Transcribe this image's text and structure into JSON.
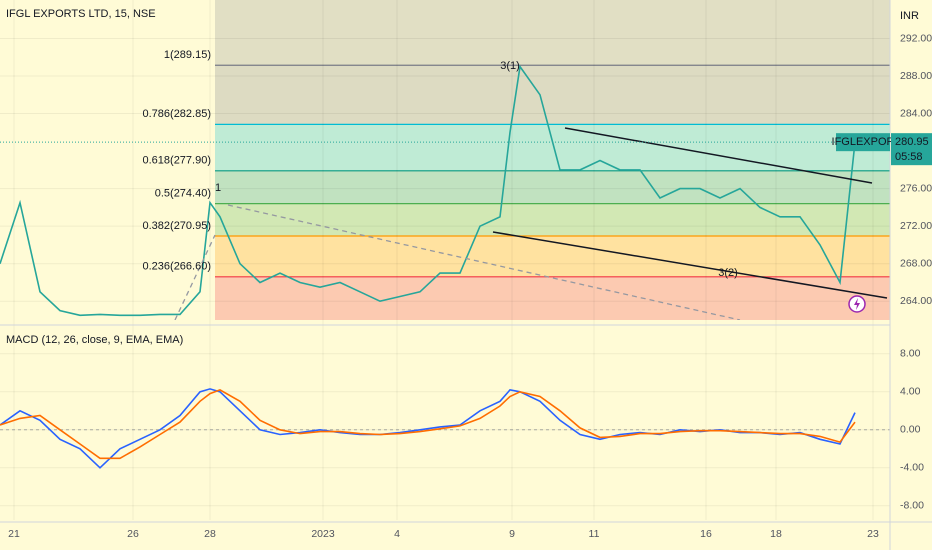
{
  "chart_data": [
    {
      "type": "line",
      "title": "IFGL EXPORTS LTD, 15, NSE",
      "y_label": "INR",
      "x": [
        0,
        2,
        4,
        6,
        8,
        10,
        12,
        14,
        16,
        18,
        20,
        21,
        22,
        24,
        26,
        28,
        30,
        32,
        34,
        36,
        38,
        40,
        42,
        44,
        46,
        48,
        50,
        51,
        52,
        54,
        56,
        58,
        60,
        62,
        64,
        66,
        68,
        70,
        72,
        74,
        76,
        78,
        80,
        82,
        84,
        85.5
      ],
      "series": [
        {
          "name": "IFGLEXPOR",
          "color": "#26a69a",
          "values": [
            268,
            274.5,
            265,
            263,
            262.5,
            262.6,
            262.5,
            262.5,
            262.6,
            262.6,
            265,
            274.5,
            273,
            268,
            266,
            267,
            266,
            265.5,
            266,
            265,
            264,
            264.5,
            265,
            267,
            267,
            272,
            273,
            282,
            289,
            286,
            278,
            278,
            279,
            278,
            278,
            275,
            276,
            276,
            275,
            276,
            274,
            273,
            273,
            270,
            266,
            280.95
          ]
        }
      ],
      "xlim": [
        0,
        89
      ],
      "xticks": [
        {
          "value": 1.4,
          "label": "21"
        },
        {
          "value": 13.3,
          "label": "26"
        },
        {
          "value": 21,
          "label": "28"
        },
        {
          "value": 32.3,
          "label": "2023"
        },
        {
          "value": 39.7,
          "label": "4"
        },
        {
          "value": 51.2,
          "label": "9"
        },
        {
          "value": 59.4,
          "label": "11"
        },
        {
          "value": 70.6,
          "label": "16"
        },
        {
          "value": 77.6,
          "label": "18"
        },
        {
          "value": 87.3,
          "label": "23"
        }
      ],
      "ylim": [
        262.0,
        296.1
      ],
      "yticks": [
        {
          "value": 264,
          "label": "264.00"
        },
        {
          "value": 268,
          "label": "268.00"
        },
        {
          "value": 272,
          "label": "272.00"
        },
        {
          "value": 276,
          "label": "276.00"
        },
        {
          "value": 284,
          "label": "284.00"
        },
        {
          "value": 288,
          "label": "288.00"
        },
        {
          "value": 292,
          "label": "292.00"
        }
      ],
      "grid": true,
      "last_price": 280.95,
      "last_price_time": "05:58",
      "fib_levels": [
        {
          "label": "1(289.15)",
          "value": 289.15,
          "color": "#787b86"
        },
        {
          "label": "0.786(282.85)",
          "value": 282.85,
          "color": "#00bcd4"
        },
        {
          "label": "0.618(277.90)",
          "value": 277.9,
          "color": "#089981"
        },
        {
          "label": "0.5(274.40)",
          "value": 274.4,
          "color": "#4caf50"
        },
        {
          "label": "0.382(270.95)",
          "value": 270.95,
          "color": "#ff9800"
        },
        {
          "label": "0.236(266.60)",
          "value": 266.6,
          "color": "#f23645"
        }
      ],
      "annotations": [
        "3(1)",
        "3(2)",
        "1"
      ]
    },
    {
      "type": "line",
      "title": "MACD (12, 26, close, 9, EMA, EMA)",
      "x": [
        0,
        2,
        4,
        6,
        8,
        10,
        12,
        14,
        16,
        18,
        20,
        21,
        22,
        24,
        26,
        28,
        30,
        32,
        34,
        36,
        38,
        40,
        42,
        44,
        46,
        48,
        50,
        51,
        52,
        54,
        56,
        58,
        60,
        62,
        64,
        66,
        68,
        70,
        72,
        74,
        76,
        78,
        80,
        82,
        84,
        85.5
      ],
      "series": [
        {
          "color": "#2962ff",
          "values": [
            0.5,
            2,
            1,
            -1,
            -2,
            -4,
            -2,
            -1,
            0,
            1.5,
            4,
            4.3,
            4,
            2,
            0,
            -0.5,
            -0.3,
            0,
            -0.3,
            -0.5,
            -0.5,
            -0.3,
            0,
            0.3,
            0.5,
            2,
            3,
            4.2,
            4,
            3,
            1,
            -0.5,
            -1,
            -0.5,
            -0.3,
            -0.5,
            0,
            -0.2,
            0,
            -0.3,
            -0.3,
            -0.5,
            -0.3,
            -1,
            -1.5,
            1.8
          ]
        },
        {
          "color": "#ff6d00",
          "values": [
            0.5,
            1.2,
            1.5,
            0,
            -1.5,
            -3,
            -3,
            -1.8,
            -0.5,
            0.8,
            3,
            3.8,
            4.2,
            3,
            1,
            0,
            -0.4,
            -0.2,
            -0.2,
            -0.4,
            -0.5,
            -0.4,
            -0.2,
            0.1,
            0.4,
            1.2,
            2.5,
            3.5,
            4,
            3.5,
            2,
            0.2,
            -0.8,
            -0.7,
            -0.4,
            -0.4,
            -0.2,
            -0.1,
            -0.1,
            -0.2,
            -0.3,
            -0.4,
            -0.4,
            -0.7,
            -1.3,
            0.8
          ]
        }
      ],
      "xlim": [
        0,
        89
      ],
      "ylim": [
        -9.5,
        10.5
      ],
      "yticks": [
        {
          "value": -8,
          "label": "-8.00"
        },
        {
          "value": -4,
          "label": "-4.00"
        },
        {
          "value": 0,
          "label": "0.00"
        },
        {
          "value": 4,
          "label": "4.00"
        },
        {
          "value": 8,
          "label": "8.00"
        }
      ],
      "grid": true
    }
  ]
}
